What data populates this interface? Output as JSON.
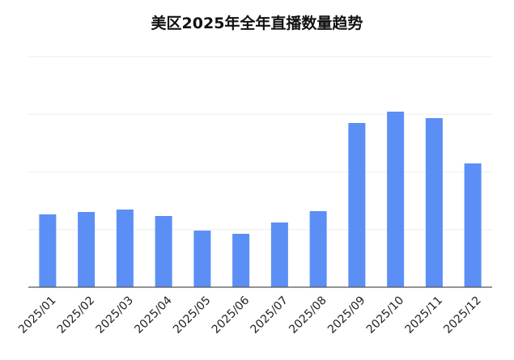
{
  "chart_data": {
    "type": "bar",
    "title": "美区2025年全年直播数量趋势",
    "xlabel": "",
    "ylabel": "",
    "categories": [
      "2025/01",
      "2025/02",
      "2025/03",
      "2025/04",
      "2025/05",
      "2025/06",
      "2025/07",
      "2025/08",
      "2025/09",
      "2025/10",
      "2025/11",
      "2025/12"
    ],
    "values": [
      90,
      93,
      96,
      88,
      70,
      66,
      80,
      94,
      203,
      217,
      209,
      153
    ],
    "ylim": [
      0,
      285
    ],
    "grid": true,
    "legend": "none",
    "bar_color": "#5b8ff5",
    "axis_color": "#555555",
    "grid_color": "#eeeeee"
  }
}
